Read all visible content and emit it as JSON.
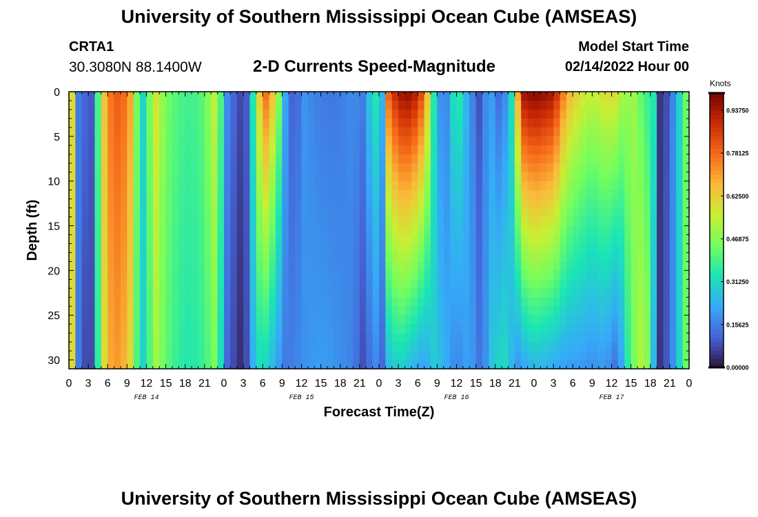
{
  "header": {
    "title": "University of Southern Mississippi Ocean Cube (AMSEAS)",
    "station_id": "CRTA1",
    "coords": "30.3080N  88.1400W",
    "subtitle": "2-D Currents Speed-Magnitude",
    "start_label": "Model Start Time",
    "start_value": "02/14/2022 Hour 00"
  },
  "footer": {
    "title": "University of Southern Mississippi Ocean Cube (AMSEAS)"
  },
  "chart_data": {
    "type": "heatmap",
    "xlabel": "Forecast Time(Z)",
    "ylabel": "Depth (ft)",
    "colorbar_label": "Knots",
    "x_range_hours": [
      0,
      96
    ],
    "y_range_ft": [
      0,
      31
    ],
    "y_ticks": [
      "0",
      "5",
      "10",
      "15",
      "20",
      "25",
      "30"
    ],
    "x_tick_labels": [
      "0",
      "3",
      "6",
      "9",
      "12",
      "15",
      "18",
      "21",
      "0",
      "3",
      "6",
      "9",
      "12",
      "15",
      "18",
      "21",
      "0",
      "3",
      "6",
      "9",
      "12",
      "15",
      "18",
      "21",
      "0",
      "3",
      "6",
      "9",
      "12",
      "15",
      "18",
      "21",
      "0"
    ],
    "day_labels": [
      "FEB 14",
      "FEB 15",
      "FEB 16",
      "FEB 17"
    ],
    "colorbar_ticks": [
      "0.00000",
      "0.15625",
      "0.31250",
      "0.46875",
      "0.62500",
      "0.78125",
      "0.93750"
    ],
    "colorbar_range": [
      0,
      1.0
    ],
    "colormap": [
      "#30123b",
      "#4662d7",
      "#36aaf9",
      "#1ae4b6",
      "#72fe5e",
      "#c8ef34",
      "#faba39",
      "#f66b19",
      "#ca2a04",
      "#7a0403"
    ],
    "time_profiles": [
      {
        "t": 0,
        "s": 0.45,
        "b": 0.45
      },
      {
        "t": 0.5,
        "s": 0.6,
        "b": 0.6
      },
      {
        "t": 1,
        "s": 0.42,
        "b": 0.42
      },
      {
        "t": 1.5,
        "s": 0.15,
        "b": 0.15
      },
      {
        "t": 2.5,
        "s": 0.12,
        "b": 0.08
      },
      {
        "t": 3,
        "s": 0.04,
        "b": 0.02
      },
      {
        "t": 3.5,
        "s": 0.1,
        "b": 0.08
      },
      {
        "t": 4.2,
        "s": 0.3,
        "b": 0.28
      },
      {
        "t": 5,
        "s": 0.55,
        "b": 0.5
      },
      {
        "t": 6,
        "s": 0.75,
        "b": 0.68
      },
      {
        "t": 8,
        "s": 0.82,
        "b": 0.72
      },
      {
        "t": 9.5,
        "s": 0.7,
        "b": 0.6
      },
      {
        "t": 10.5,
        "s": 0.45,
        "b": 0.4
      },
      {
        "t": 11.5,
        "s": 0.3,
        "b": 0.3
      },
      {
        "t": 12.5,
        "s": 0.45,
        "b": 0.4
      },
      {
        "t": 13.5,
        "s": 0.58,
        "b": 0.5
      },
      {
        "t": 15,
        "s": 0.45,
        "b": 0.42
      },
      {
        "t": 17,
        "s": 0.4,
        "b": 0.36
      },
      {
        "t": 19,
        "s": 0.38,
        "b": 0.34
      },
      {
        "t": 21,
        "s": 0.42,
        "b": 0.38
      },
      {
        "t": 22.5,
        "s": 0.55,
        "b": 0.45
      },
      {
        "t": 23.5,
        "s": 0.4,
        "b": 0.32
      },
      {
        "t": 24.5,
        "s": 0.18,
        "b": 0.12
      },
      {
        "t": 25.5,
        "s": 0.12,
        "b": 0.08
      },
      {
        "t": 27,
        "s": 0.06,
        "b": 0.02
      },
      {
        "t": 28,
        "s": 0.15,
        "b": 0.15
      },
      {
        "t": 29,
        "s": 0.55,
        "b": 0.32
      },
      {
        "t": 30.5,
        "s": 0.78,
        "b": 0.3
      },
      {
        "t": 32,
        "s": 0.6,
        "b": 0.22
      },
      {
        "t": 33.5,
        "s": 0.22,
        "b": 0.15
      },
      {
        "t": 35,
        "s": 0.06,
        "b": 0.16
      },
      {
        "t": 36,
        "s": 0.2,
        "b": 0.18
      },
      {
        "t": 38,
        "s": 0.16,
        "b": 0.2
      },
      {
        "t": 40,
        "s": 0.14,
        "b": 0.2
      },
      {
        "t": 42,
        "s": 0.15,
        "b": 0.18
      },
      {
        "t": 44,
        "s": 0.18,
        "b": 0.16
      },
      {
        "t": 46,
        "s": 0.15,
        "b": 0.06
      },
      {
        "t": 47,
        "s": 0.4,
        "b": 0.2
      },
      {
        "t": 48.5,
        "s": 0.25,
        "b": 0.12
      },
      {
        "t": 49.5,
        "s": 0.8,
        "b": 0.25
      },
      {
        "t": 51,
        "s": 0.95,
        "b": 0.3
      },
      {
        "t": 53,
        "s": 0.98,
        "b": 0.25
      },
      {
        "t": 55,
        "s": 0.8,
        "b": 0.2
      },
      {
        "t": 56.5,
        "s": 0.35,
        "b": 0.28
      },
      {
        "t": 58,
        "s": 0.1,
        "b": 0.25
      },
      {
        "t": 59,
        "s": 0.25,
        "b": 0.2
      },
      {
        "t": 60,
        "s": 0.4,
        "b": 0.16
      },
      {
        "t": 62,
        "s": 0.2,
        "b": 0.22
      },
      {
        "t": 64,
        "s": 0.05,
        "b": 0.12
      },
      {
        "t": 65,
        "s": 0.3,
        "b": 0.25
      },
      {
        "t": 66,
        "s": 0.1,
        "b": 0.3
      },
      {
        "t": 68,
        "s": 0.2,
        "b": 0.32
      },
      {
        "t": 69,
        "s": 0.45,
        "b": 0.18
      },
      {
        "t": 70,
        "s": 0.95,
        "b": 0.2
      },
      {
        "t": 72,
        "s": 1.0,
        "b": 0.25
      },
      {
        "t": 75,
        "s": 0.95,
        "b": 0.22
      },
      {
        "t": 77,
        "s": 0.7,
        "b": 0.2
      },
      {
        "t": 79,
        "s": 0.6,
        "b": 0.2
      },
      {
        "t": 81,
        "s": 0.55,
        "b": 0.18
      },
      {
        "t": 83,
        "s": 0.6,
        "b": 0.2
      },
      {
        "t": 85,
        "s": 0.6,
        "b": 0.12
      },
      {
        "t": 86,
        "s": 0.45,
        "b": 0.3
      },
      {
        "t": 87,
        "s": 0.55,
        "b": 0.4
      },
      {
        "t": 88,
        "s": 0.45,
        "b": 0.5
      },
      {
        "t": 89,
        "s": 0.4,
        "b": 0.55
      },
      {
        "t": 90,
        "s": 0.35,
        "b": 0.4
      },
      {
        "t": 90.5,
        "s": 0.35,
        "b": 0.25
      },
      {
        "t": 91.5,
        "s": 0.05,
        "b": 0.05
      },
      {
        "t": 93,
        "s": 0.1,
        "b": 0.12
      },
      {
        "t": 94.5,
        "s": 0.3,
        "b": 0.3
      },
      {
        "t": 96,
        "s": 0.5,
        "b": 0.5
      }
    ]
  }
}
